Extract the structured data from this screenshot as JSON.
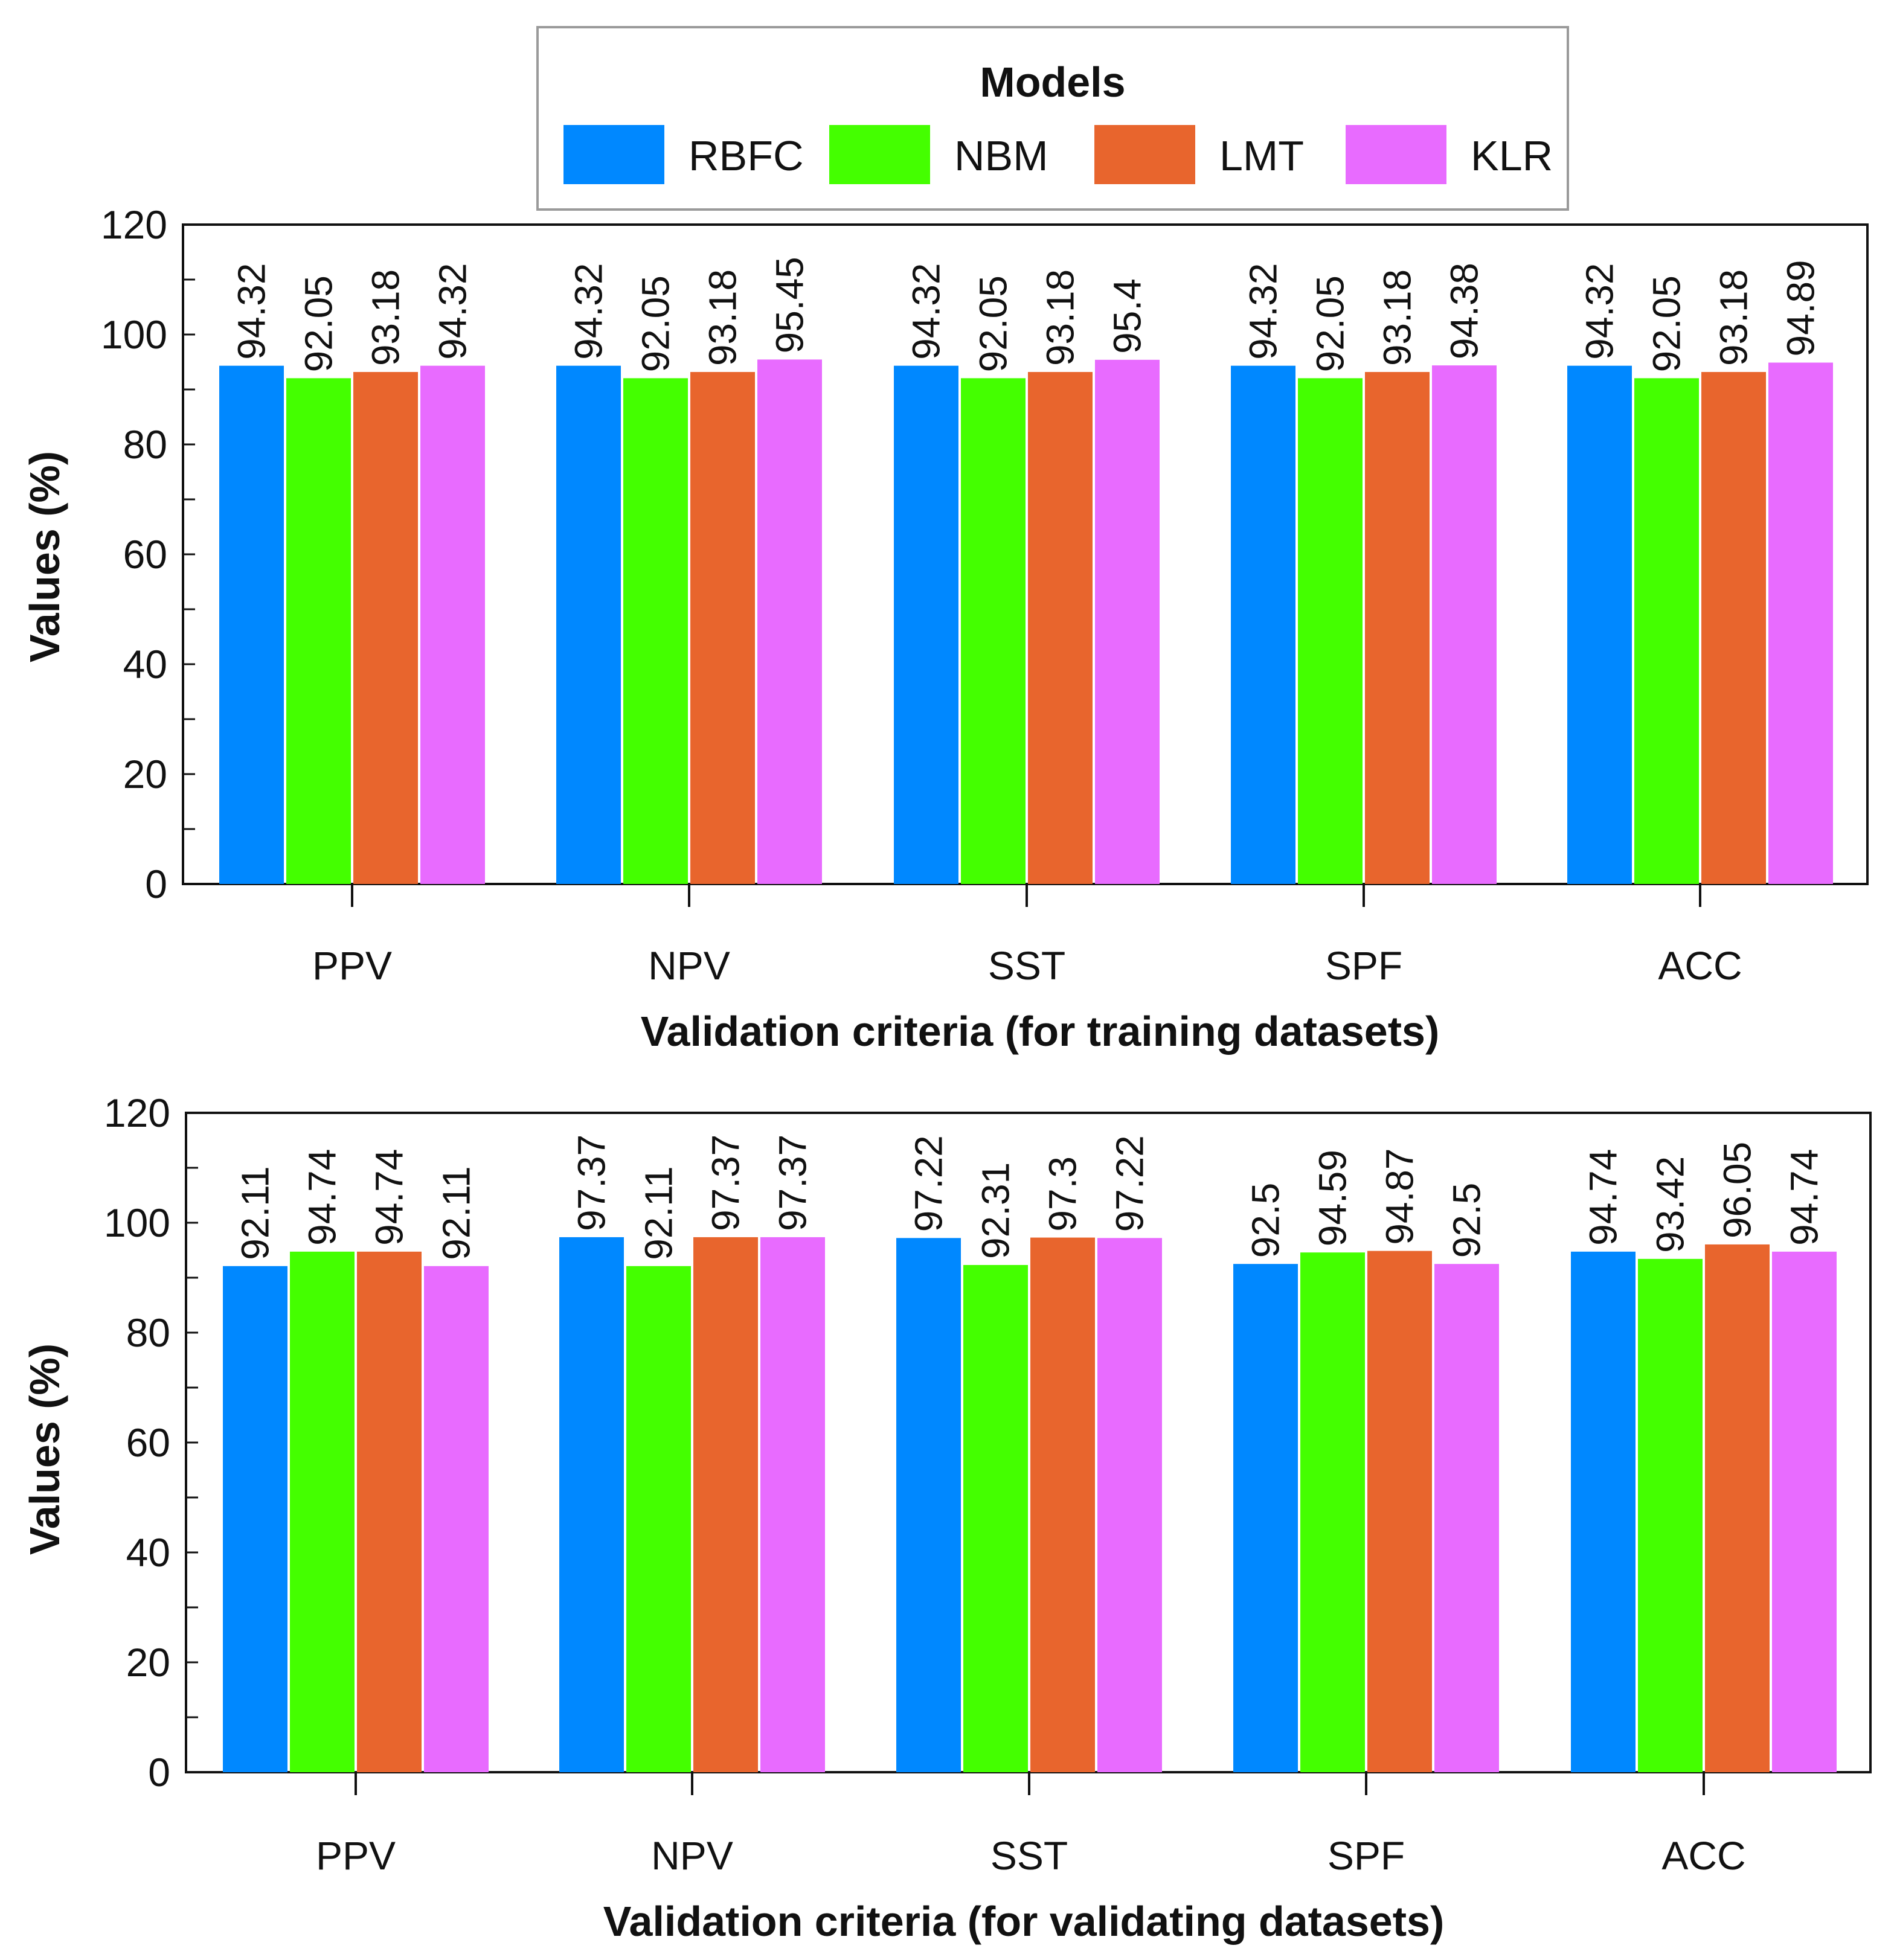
{
  "legend": {
    "title": "Models",
    "items": [
      {
        "label": "RBFC",
        "color": "#0088ff"
      },
      {
        "label": "NBM",
        "color": "#44ff00"
      },
      {
        "label": "LMT",
        "color": "#e8652d"
      },
      {
        "label": "KLR",
        "color": "#e86bff"
      }
    ]
  },
  "chart_data": [
    {
      "type": "bar",
      "xlabel": "Validation criteria (for training datasets)",
      "ylabel": "Values (%)",
      "ylim": [
        0,
        120
      ],
      "yticks": [
        0,
        20,
        40,
        60,
        80,
        100,
        120
      ],
      "categories": [
        "PPV",
        "NPV",
        "SST",
        "SPF",
        "ACC"
      ],
      "series": [
        {
          "name": "RBFC",
          "values": [
            94.32,
            94.32,
            94.32,
            94.32,
            94.32
          ],
          "labels": [
            "94.32",
            "94.32",
            "94.32",
            "94.32",
            "94.32"
          ]
        },
        {
          "name": "NBM",
          "values": [
            92.05,
            92.05,
            92.05,
            92.05,
            92.05
          ],
          "labels": [
            "92.05",
            "92.05",
            "92.05",
            "92.05",
            "92.05"
          ]
        },
        {
          "name": "LMT",
          "values": [
            93.18,
            93.18,
            93.18,
            93.18,
            93.18
          ],
          "labels": [
            "93.18",
            "93.18",
            "93.18",
            "93.18",
            "93.18"
          ]
        },
        {
          "name": "KLR",
          "values": [
            94.32,
            95.45,
            95.4,
            94.38,
            94.89
          ],
          "labels": [
            "94.32",
            "95.45",
            "95.4",
            "94.38",
            "94.89"
          ]
        }
      ]
    },
    {
      "type": "bar",
      "xlabel": "Validation criteria (for validating datasets)",
      "ylabel": "Values (%)",
      "ylim": [
        0,
        120
      ],
      "yticks": [
        0,
        20,
        40,
        60,
        80,
        100,
        120
      ],
      "categories": [
        "PPV",
        "NPV",
        "SST",
        "SPF",
        "ACC"
      ],
      "series": [
        {
          "name": "RBFC",
          "values": [
            92.11,
            97.37,
            97.22,
            92.5,
            94.74
          ],
          "labels": [
            "92.11",
            "97.37",
            "97.22",
            "92.5",
            "94.74"
          ]
        },
        {
          "name": "NBM",
          "values": [
            94.74,
            92.11,
            92.31,
            94.59,
            93.42
          ],
          "labels": [
            "94.74",
            "92.11",
            "92.31",
            "94.59",
            "93.42"
          ]
        },
        {
          "name": "LMT",
          "values": [
            94.74,
            97.37,
            97.3,
            94.87,
            96.05
          ],
          "labels": [
            "94.74",
            "97.37",
            "97.3",
            "94.87",
            "96.05"
          ]
        },
        {
          "name": "KLR",
          "values": [
            92.11,
            97.37,
            97.22,
            92.5,
            94.74
          ],
          "labels": [
            "92.11",
            "97.37",
            "97.22",
            "92.5",
            "94.74"
          ]
        }
      ]
    }
  ]
}
